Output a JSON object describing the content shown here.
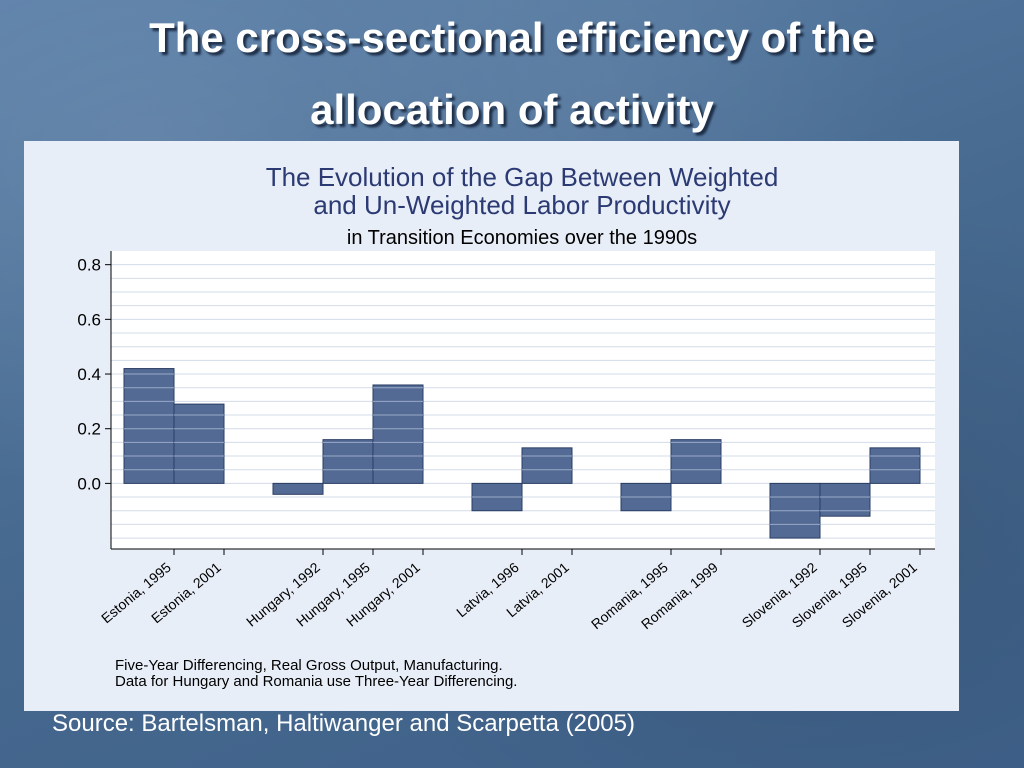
{
  "slide": {
    "title_line1": "The cross-sectional efficiency of the",
    "title_line2": "allocation of activity",
    "source": "Source:  Bartelsman, Haltiwanger and Scarpetta (2005)"
  },
  "colors": {
    "bar_fill": "#536a94",
    "bar_stroke": "#2a3e63",
    "chart_background": "#e8eef8",
    "plot_background": "#ffffff",
    "title_text": "#2b3a73"
  },
  "chart_data": {
    "type": "bar",
    "title_line1": "The Evolution of the Gap Between Weighted",
    "title_line2": "and Un-Weighted Labor Productivity",
    "subtitle": "in Transition Economies over the 1990s",
    "categories": [
      "Estonia, 1995",
      "Estonia, 2001",
      "Hungary, 1992",
      "Hungary, 1995",
      "Hungary, 2001",
      "Latvia, 1996",
      "Latvia, 2001",
      "Romania, 1995",
      "Romania, 1999",
      "Slovenia, 1992",
      "Slovenia, 1995",
      "Slovenia, 2001"
    ],
    "groups": [
      {
        "name": "Estonia",
        "categories": [
          "Estonia, 1995",
          "Estonia, 2001"
        ]
      },
      {
        "name": "Hungary",
        "categories": [
          "Hungary, 1992",
          "Hungary, 1995",
          "Hungary, 2001"
        ]
      },
      {
        "name": "Latvia",
        "categories": [
          "Latvia, 1996",
          "Latvia, 2001"
        ]
      },
      {
        "name": "Romania",
        "categories": [
          "Romania, 1995",
          "Romania, 1999"
        ]
      },
      {
        "name": "Slovenia",
        "categories": [
          "Slovenia, 1992",
          "Slovenia, 1995",
          "Slovenia, 2001"
        ]
      }
    ],
    "values": [
      0.42,
      0.29,
      -0.04,
      0.16,
      0.36,
      -0.1,
      0.13,
      -0.1,
      0.16,
      -0.2,
      -0.12,
      0.13
    ],
    "ylim": [
      -0.24,
      0.85
    ],
    "yticks": [
      0.0,
      0.2,
      0.4,
      0.6,
      0.8
    ],
    "ytick_labels": [
      "0.0",
      "0.2",
      "0.4",
      "0.6",
      "0.8"
    ],
    "xlabel": "",
    "ylabel": "",
    "grid": true,
    "notes": [
      "Five-Year Differencing, Real Gross Output, Manufacturing.",
      "Data for Hungary and Romania use Three-Year Differencing."
    ]
  }
}
